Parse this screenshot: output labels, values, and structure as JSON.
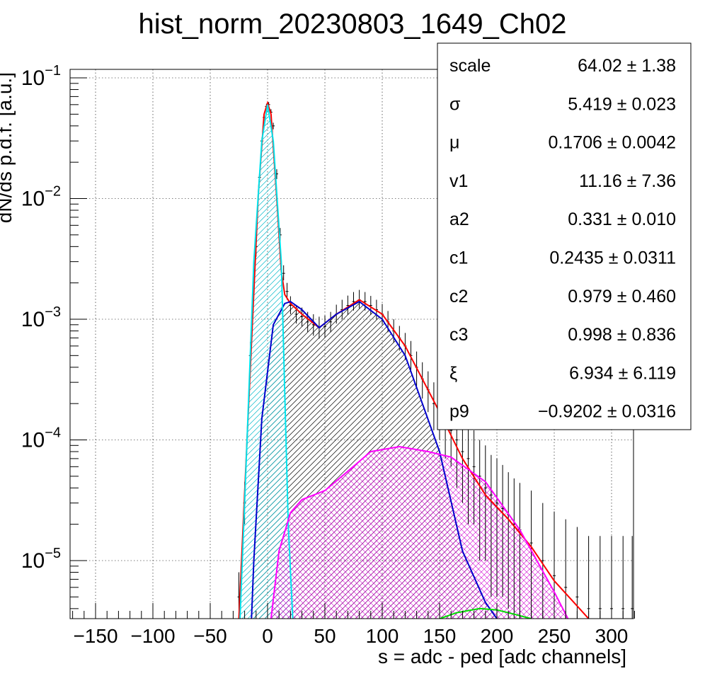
{
  "chart_data": {
    "type": "histogram",
    "title": "hist_norm_20230803_1649_Ch02",
    "xlabel": "s = adc - ped [adc channels]",
    "ylabel": "dN/ds p.d.f. [a.u.]",
    "xlim": [
      -170,
      320
    ],
    "ylim": [
      3.3e-06,
      0.11
    ],
    "yscale": "log",
    "grid": true,
    "x_ticks": [
      "-150",
      "-100",
      "-50",
      "0",
      "50",
      "100",
      "150",
      "200",
      "250",
      "300"
    ],
    "x_tick_values": [
      -150,
      -100,
      -50,
      0,
      50,
      100,
      150,
      200,
      250,
      300
    ],
    "y_ticks": [
      {
        "base": "10",
        "exp": "-1",
        "value": 0.1
      },
      {
        "base": "10",
        "exp": "-2",
        "value": 0.01
      },
      {
        "base": "10",
        "exp": "-3",
        "value": 0.001
      },
      {
        "base": "10",
        "exp": "-4",
        "value": 0.0001
      },
      {
        "base": "10",
        "exp": "-5",
        "value": 1e-05
      }
    ],
    "series": [
      {
        "color": "#ff0000",
        "x": [
          -25,
          -15,
          -8,
          -3,
          0,
          3,
          8,
          12,
          15,
          20,
          30,
          45,
          60,
          80,
          100,
          120,
          150,
          170,
          190,
          210,
          230,
          250,
          270,
          280
        ],
        "y": [
          3.3e-06,
          0.0004,
          0.011,
          0.05,
          0.062,
          0.05,
          0.01,
          0.0025,
          0.0016,
          0.00135,
          0.0011,
          0.00085,
          0.0011,
          0.00145,
          0.0011,
          0.0006,
          0.00017,
          7e-05,
          3.5e-05,
          2.2e-05,
          1.3e-05,
          6.8e-06,
          4.2e-06,
          3.3e-06
        ]
      },
      {
        "color": "#0000cc",
        "x": [
          -14,
          -12,
          -5,
          5,
          15,
          20,
          30,
          45,
          60,
          80,
          100,
          120,
          150,
          170,
          190,
          200
        ],
        "y": [
          3.3e-06,
          1e-05,
          0.00015,
          0.0009,
          0.00135,
          0.0014,
          0.0012,
          0.00085,
          0.0011,
          0.0014,
          0.001,
          0.0005,
          8e-05,
          1.2e-05,
          4.5e-06,
          3.3e-06
        ]
      },
      {
        "color": "#00e5ee",
        "x": [
          -24,
          -20,
          -12,
          -5,
          0,
          5,
          12,
          18,
          22
        ],
        "y": [
          3.3e-06,
          3e-05,
          0.003,
          0.03,
          0.06,
          0.03,
          0.003,
          2e-05,
          3.3e-06
        ]
      },
      {
        "color": "#ff00ff",
        "x": [
          3,
          10,
          20,
          30,
          50,
          70,
          90,
          115,
          140,
          160,
          190,
          220,
          250,
          262
        ],
        "y": [
          3.3e-06,
          1.2e-05,
          2.5e-05,
          3.2e-05,
          3.8e-05,
          5.5e-05,
          8e-05,
          8.8e-05,
          8e-05,
          7.2e-05,
          4.5e-05,
          1.8e-05,
          5.5e-06,
          3.3e-06
        ]
      },
      {
        "color": "#00dd00",
        "x": [
          150,
          165,
          185,
          200,
          215,
          230
        ],
        "y": [
          3.3e-06,
          3.7e-06,
          4e-06,
          3.9e-06,
          3.6e-06,
          3.3e-06
        ]
      }
    ],
    "data_points": {
      "x": [
        -25,
        -20,
        -15,
        -10,
        -7,
        -5,
        -3,
        -1,
        1,
        3,
        5,
        8,
        11,
        14,
        17,
        20,
        25,
        30,
        35,
        40,
        45,
        50,
        55,
        60,
        65,
        70,
        75,
        80,
        85,
        90,
        95,
        100,
        105,
        110,
        115,
        120,
        125,
        130,
        135,
        140,
        145,
        150,
        155,
        160,
        165,
        170,
        175,
        180,
        185,
        190,
        195,
        200,
        205,
        210,
        215,
        220,
        230,
        240,
        250,
        260,
        270,
        280,
        290,
        300,
        310,
        318
      ],
      "y": [
        5e-06,
        3e-05,
        0.0005,
        0.004,
        0.015,
        0.03,
        0.047,
        0.058,
        0.06,
        0.052,
        0.04,
        0.016,
        0.005,
        0.0024,
        0.0017,
        0.0013,
        0.0011,
        0.00105,
        0.00095,
        0.0009,
        0.00085,
        0.00087,
        0.00095,
        0.0011,
        0.0012,
        0.0013,
        0.0014,
        0.00145,
        0.0014,
        0.0013,
        0.0012,
        0.0011,
        0.00095,
        0.0008,
        0.0007,
        0.0006,
        0.0005,
        0.0004,
        0.00032,
        0.00026,
        0.0002,
        0.00017,
        0.00014,
        0.00012,
        0.0001,
        8e-05,
        7e-05,
        6e-05,
        5e-05,
        4e-05,
        3.5e-05,
        3e-05,
        2.7e-05,
        2.4e-05,
        2e-05,
        1.8e-05,
        1.4e-05,
        1e-05,
        7.5e-06,
        6e-06,
        5e-06,
        4e-06,
        4e-06,
        4e-06,
        4e-06,
        4e-06
      ],
      "err_lo": [
        1.7e-06,
        1e-05,
        0.00012,
        0.0007,
        0.0015,
        0.002,
        0.0025,
        0.003,
        0.003,
        0.003,
        0.0025,
        0.0015,
        0.0006,
        0.0003,
        0.00025,
        0.0002,
        0.00018,
        0.00018,
        0.00017,
        0.00017,
        0.00016,
        0.00016,
        0.00017,
        0.00018,
        0.0002,
        0.00021,
        0.00022,
        0.00022,
        0.00022,
        0.00021,
        0.0002,
        0.00019,
        0.00017,
        0.00016,
        0.00015,
        0.00014,
        0.00013,
        0.00012,
        0.0001,
        9e-05,
        8e-05,
        7e-05,
        7e-05,
        6e-05,
        6e-05,
        5e-05,
        5e-05,
        4e-05,
        4e-05,
        3e-05,
        3e-05,
        2.5e-05,
        2.2e-05,
        2e-05,
        1.7e-05,
        1.6e-05,
        1.2e-05,
        9.5e-06,
        7.2e-06,
        5.8e-06,
        4.8e-06,
        3.9e-06,
        3.9e-06,
        3.9e-06,
        3.9e-06,
        3.9e-06
      ],
      "err_hi": [
        3e-06,
        1.5e-05,
        0.00015,
        0.0008,
        0.0016,
        0.002,
        0.0025,
        0.003,
        0.003,
        0.003,
        0.0025,
        0.0015,
        0.0007,
        0.0004,
        0.0003,
        0.00025,
        0.0002,
        0.0002,
        0.0002,
        0.0002,
        0.0002,
        0.0002,
        0.0002,
        0.00022,
        0.00025,
        0.00027,
        0.00028,
        0.0003,
        0.00028,
        0.00026,
        0.00025,
        0.00024,
        0.00022,
        0.0002,
        0.00018,
        0.00017,
        0.00016,
        0.00014,
        0.00012,
        0.00011,
        0.0001,
        9e-05,
        8e-05,
        8e-05,
        7e-05,
        7e-05,
        6e-05,
        6e-05,
        5e-05,
        5e-05,
        4e-05,
        4e-05,
        3.5e-05,
        3e-05,
        2.8e-05,
        2.6e-05,
        2.4e-05,
        2e-05,
        1.8e-05,
        1.6e-05,
        1.4e-05,
        1.2e-05,
        1.2e-05,
        1.2e-05,
        1.2e-05,
        1.2e-05
      ]
    },
    "stats_box": {
      "rows": [
        {
          "name": "scale",
          "value": "64.02",
          "pm": "±",
          "error": "1.38"
        },
        {
          "name": "σ",
          "value": "5.419",
          "pm": "±",
          "error": "0.023"
        },
        {
          "name": "μ",
          "value": "0.1706",
          "pm": "±",
          "error": "0.0042"
        },
        {
          "name": "v1",
          "value": "11.16",
          "pm": "±",
          "error": "7.36"
        },
        {
          "name": "a2",
          "value": "0.331",
          "pm": "±",
          "error": "0.010"
        },
        {
          "name": "c1",
          "value": "0.2435",
          "pm": "±",
          "error": "0.0311"
        },
        {
          "name": "c2",
          "value": "0.979",
          "pm": "±",
          "error": "0.460"
        },
        {
          "name": "c3",
          "value": "0.998",
          "pm": "±",
          "error": "0.836"
        },
        {
          "name": "ξ",
          "value": "6.934",
          "pm": "±",
          "error": "6.119"
        },
        {
          "name": "p9",
          "value": "−0.9202",
          "pm": "±",
          "error": "0.0316"
        }
      ]
    }
  }
}
